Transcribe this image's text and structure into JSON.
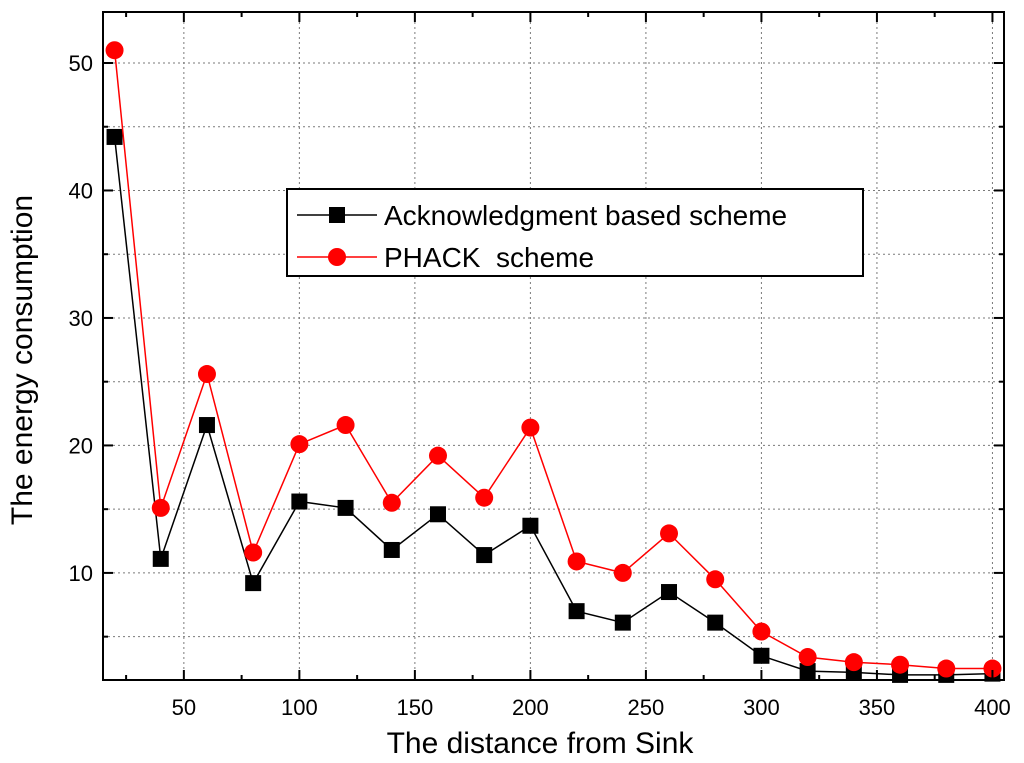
{
  "chart_data": {
    "type": "line",
    "title": "",
    "xlabel": "The distance from Sink",
    "ylabel": "The energy consumption",
    "xlim": [
      15,
      405
    ],
    "ylim": [
      1.6,
      54
    ],
    "xticks": [
      50,
      100,
      150,
      200,
      250,
      300,
      350,
      400
    ],
    "xgrid": [
      50,
      100,
      150,
      200,
      250,
      300,
      350,
      400
    ],
    "yticks": [
      10,
      20,
      30,
      40,
      50
    ],
    "ygrid": [
      5,
      15,
      25,
      35,
      45
    ],
    "grid": true,
    "legend_position": "center",
    "x": [
      20,
      40,
      60,
      80,
      100,
      120,
      140,
      160,
      180,
      200,
      220,
      240,
      260,
      280,
      300,
      320,
      340,
      360,
      380,
      400
    ],
    "series": [
      {
        "name": "Acknowledgment based scheme",
        "color": "#000000",
        "marker": "square",
        "values": [
          44.2,
          11.1,
          21.6,
          9.2,
          15.6,
          15.1,
          11.8,
          14.6,
          11.4,
          13.7,
          7.0,
          6.1,
          8.5,
          6.1,
          3.5,
          2.3,
          2.2,
          2.0,
          2.0,
          2.1
        ]
      },
      {
        "name": "PHACK  scheme",
        "color": "#ff0000",
        "marker": "circle",
        "values": [
          51.0,
          15.1,
          25.6,
          11.6,
          20.1,
          21.6,
          15.5,
          19.2,
          15.9,
          21.4,
          10.9,
          10.0,
          13.1,
          9.5,
          5.4,
          3.4,
          3.0,
          2.8,
          2.5,
          2.5
        ]
      }
    ]
  }
}
